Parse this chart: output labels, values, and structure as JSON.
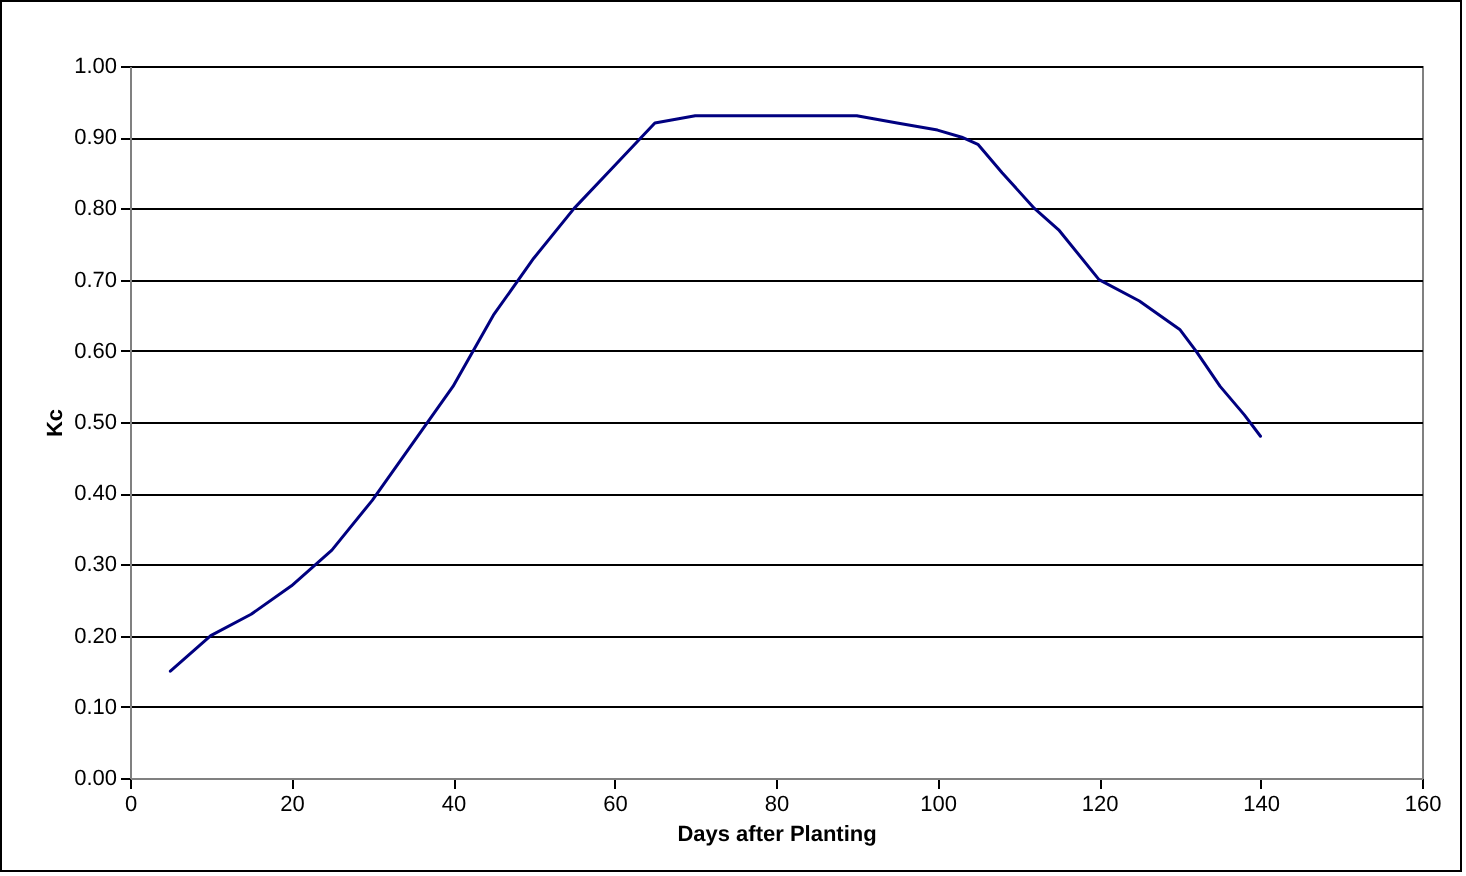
{
  "chart_data": {
    "type": "line",
    "xlabel": "Days after Planting",
    "ylabel": "Kc",
    "x": [
      5,
      10,
      15,
      20,
      25,
      30,
      35,
      40,
      45,
      50,
      55,
      60,
      65,
      70,
      80,
      90,
      95,
      100,
      103,
      105,
      108,
      112,
      115,
      120,
      125,
      130,
      132,
      135,
      138,
      140
    ],
    "series": [
      {
        "color": "#000080",
        "values": [
          0.15,
          0.2,
          0.23,
          0.27,
          0.32,
          0.39,
          0.47,
          0.55,
          0.65,
          0.73,
          0.8,
          0.86,
          0.92,
          0.93,
          0.93,
          0.93,
          0.92,
          0.91,
          0.9,
          0.89,
          0.85,
          0.8,
          0.77,
          0.7,
          0.67,
          0.63,
          0.6,
          0.55,
          0.51,
          0.48
        ]
      }
    ],
    "xlim": [
      0,
      160
    ],
    "xticks": [
      0,
      20,
      40,
      60,
      80,
      100,
      120,
      140,
      160
    ],
    "ylim": [
      0,
      1
    ],
    "yticks": [
      {
        "value": 0,
        "label": "0.00"
      },
      {
        "value": 0.1,
        "label": "0.10"
      },
      {
        "value": 0.2,
        "label": "0.20"
      },
      {
        "value": 0.3,
        "label": "0.30"
      },
      {
        "value": 0.4,
        "label": "0.40"
      },
      {
        "value": 0.5,
        "label": "0.50"
      },
      {
        "value": 0.6,
        "label": "0.60"
      },
      {
        "value": 0.7,
        "label": "0.70"
      },
      {
        "value": 0.8,
        "label": "0.80"
      },
      {
        "value": 0.9,
        "label": "0.90"
      },
      {
        "value": 1,
        "label": "1.00"
      }
    ],
    "grid": "y",
    "marker": "none",
    "line_style": "solid"
  }
}
